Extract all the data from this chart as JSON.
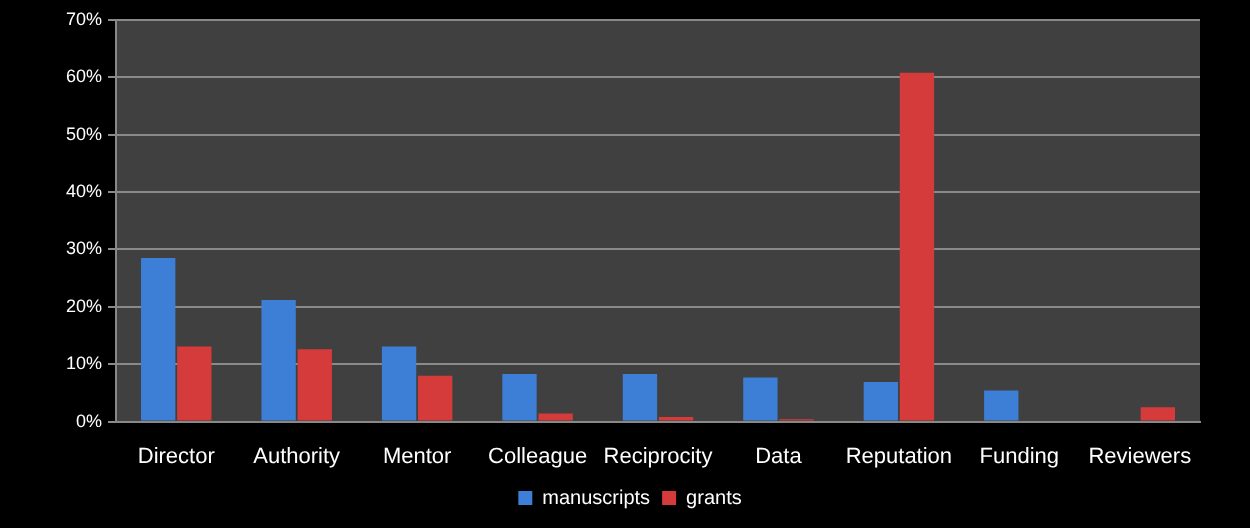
{
  "chart_data": {
    "type": "bar",
    "categories": [
      "Director",
      "Authority",
      "Mentor",
      "Colleague",
      "Reciprocity",
      "Data",
      "Reputation",
      "Funding",
      "Reviewers"
    ],
    "series": [
      {
        "name": "manuscripts",
        "color": "#3d7fd6",
        "values": [
          28.5,
          21.2,
          13.1,
          8.3,
          8.3,
          7.7,
          6.9,
          5.4,
          0
        ]
      },
      {
        "name": "grants",
        "color": "#d63b3b",
        "values": [
          13.1,
          12.6,
          8.0,
          1.4,
          0.8,
          0.4,
          60.8,
          0,
          2.5
        ]
      }
    ],
    "ylim": [
      0,
      70
    ],
    "yticks": [
      {
        "value": 0,
        "label": "0%"
      },
      {
        "value": 10,
        "label": "10%"
      },
      {
        "value": 20,
        "label": "20%"
      },
      {
        "value": 30,
        "label": "30%"
      },
      {
        "value": 40,
        "label": "40%"
      },
      {
        "value": 50,
        "label": "50%"
      },
      {
        "value": 60,
        "label": "60%"
      },
      {
        "value": 70,
        "label": "70%"
      }
    ],
    "grid": "y",
    "legend": "bottom"
  }
}
